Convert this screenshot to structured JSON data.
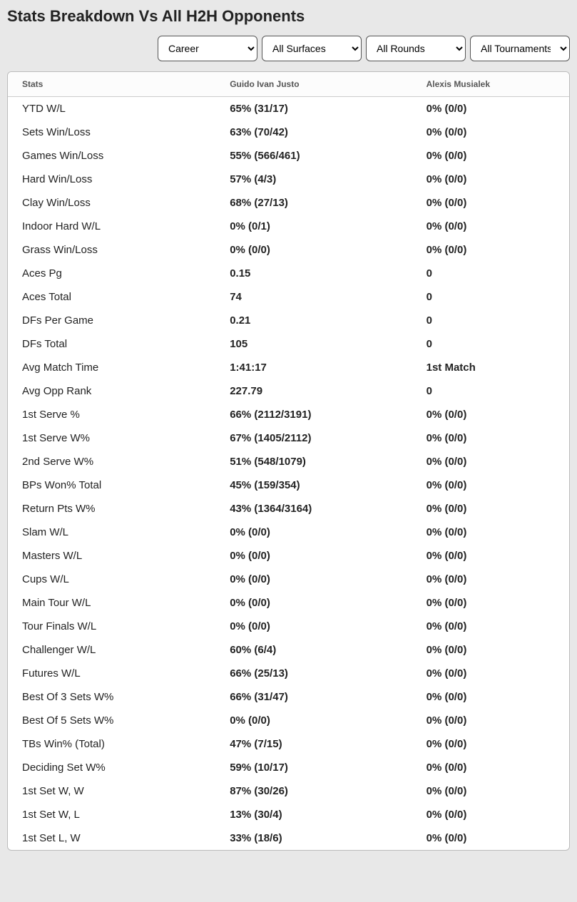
{
  "title": "Stats Breakdown Vs All H2H Opponents",
  "filters": {
    "career": "Career",
    "surface": "All Surfaces",
    "round": "All Rounds",
    "tournament": "All Tournaments"
  },
  "columns": {
    "stats": "Stats",
    "player1": "Guido Ivan Justo",
    "player2": "Alexis Musialek"
  },
  "rows": [
    {
      "stat": "YTD W/L",
      "p1": "65% (31/17)",
      "p2": "0% (0/0)"
    },
    {
      "stat": "Sets Win/Loss",
      "p1": "63% (70/42)",
      "p2": "0% (0/0)"
    },
    {
      "stat": "Games Win/Loss",
      "p1": "55% (566/461)",
      "p2": "0% (0/0)"
    },
    {
      "stat": "Hard Win/Loss",
      "p1": "57% (4/3)",
      "p2": "0% (0/0)"
    },
    {
      "stat": "Clay Win/Loss",
      "p1": "68% (27/13)",
      "p2": "0% (0/0)"
    },
    {
      "stat": "Indoor Hard W/L",
      "p1": "0% (0/1)",
      "p2": "0% (0/0)"
    },
    {
      "stat": "Grass Win/Loss",
      "p1": "0% (0/0)",
      "p2": "0% (0/0)"
    },
    {
      "stat": "Aces Pg",
      "p1": "0.15",
      "p2": "0"
    },
    {
      "stat": "Aces Total",
      "p1": "74",
      "p2": "0"
    },
    {
      "stat": "DFs Per Game",
      "p1": "0.21",
      "p2": "0"
    },
    {
      "stat": "DFs Total",
      "p1": "105",
      "p2": "0"
    },
    {
      "stat": "Avg Match Time",
      "p1": "1:41:17",
      "p2": "1st Match"
    },
    {
      "stat": "Avg Opp Rank",
      "p1": "227.79",
      "p2": "0"
    },
    {
      "stat": "1st Serve %",
      "p1": "66% (2112/3191)",
      "p2": "0% (0/0)"
    },
    {
      "stat": "1st Serve W%",
      "p1": "67% (1405/2112)",
      "p2": "0% (0/0)"
    },
    {
      "stat": "2nd Serve W%",
      "p1": "51% (548/1079)",
      "p2": "0% (0/0)"
    },
    {
      "stat": "BPs Won% Total",
      "p1": "45% (159/354)",
      "p2": "0% (0/0)"
    },
    {
      "stat": "Return Pts W%",
      "p1": "43% (1364/3164)",
      "p2": "0% (0/0)"
    },
    {
      "stat": "Slam W/L",
      "p1": "0% (0/0)",
      "p2": "0% (0/0)"
    },
    {
      "stat": "Masters W/L",
      "p1": "0% (0/0)",
      "p2": "0% (0/0)"
    },
    {
      "stat": "Cups W/L",
      "p1": "0% (0/0)",
      "p2": "0% (0/0)"
    },
    {
      "stat": "Main Tour W/L",
      "p1": "0% (0/0)",
      "p2": "0% (0/0)"
    },
    {
      "stat": "Tour Finals W/L",
      "p1": "0% (0/0)",
      "p2": "0% (0/0)"
    },
    {
      "stat": "Challenger W/L",
      "p1": "60% (6/4)",
      "p2": "0% (0/0)"
    },
    {
      "stat": "Futures W/L",
      "p1": "66% (25/13)",
      "p2": "0% (0/0)"
    },
    {
      "stat": "Best Of 3 Sets W%",
      "p1": "66% (31/47)",
      "p2": "0% (0/0)"
    },
    {
      "stat": "Best Of 5 Sets W%",
      "p1": "0% (0/0)",
      "p2": "0% (0/0)"
    },
    {
      "stat": "TBs Win% (Total)",
      "p1": "47% (7/15)",
      "p2": "0% (0/0)"
    },
    {
      "stat": "Deciding Set W%",
      "p1": "59% (10/17)",
      "p2": "0% (0/0)"
    },
    {
      "stat": "1st Set W, W",
      "p1": "87% (30/26)",
      "p2": "0% (0/0)"
    },
    {
      "stat": "1st Set W, L",
      "p1": "13% (30/4)",
      "p2": "0% (0/0)"
    },
    {
      "stat": "1st Set L, W",
      "p1": "33% (18/6)",
      "p2": "0% (0/0)"
    }
  ]
}
